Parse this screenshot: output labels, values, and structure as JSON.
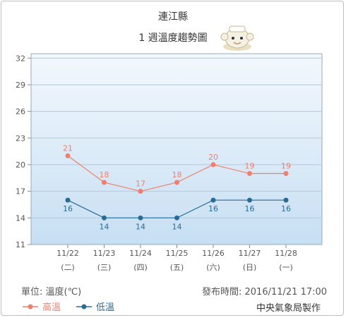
{
  "header": {
    "title": "連江縣",
    "subtitle": "1 週溫度趨勢圖"
  },
  "chart_data": {
    "type": "line",
    "categories": [
      "11/22",
      "11/23",
      "11/24",
      "11/25",
      "11/26",
      "11/27",
      "11/28"
    ],
    "weekdays": [
      "(二)",
      "(三)",
      "(四)",
      "(五)",
      "(六)",
      "(日)",
      "(一)"
    ],
    "yticks": [
      11,
      14,
      17,
      20,
      23,
      26,
      29,
      32
    ],
    "ylim": [
      11,
      32.5
    ],
    "grid": true,
    "series": [
      {
        "name": "高溫",
        "color": "#f07f6d",
        "values": [
          21,
          18,
          17,
          18,
          20,
          19,
          19
        ]
      },
      {
        "name": "低溫",
        "color": "#2a6b96",
        "values": [
          16,
          14,
          14,
          14,
          16,
          16,
          16
        ]
      }
    ]
  },
  "footer": {
    "unit": "單位: 溫度(℃)",
    "published": "發布時間: 2016/11/21 17:00",
    "maker": "中央氣象局製作"
  },
  "icons": {
    "mascot": "weather-bureau-mascot-icon"
  }
}
